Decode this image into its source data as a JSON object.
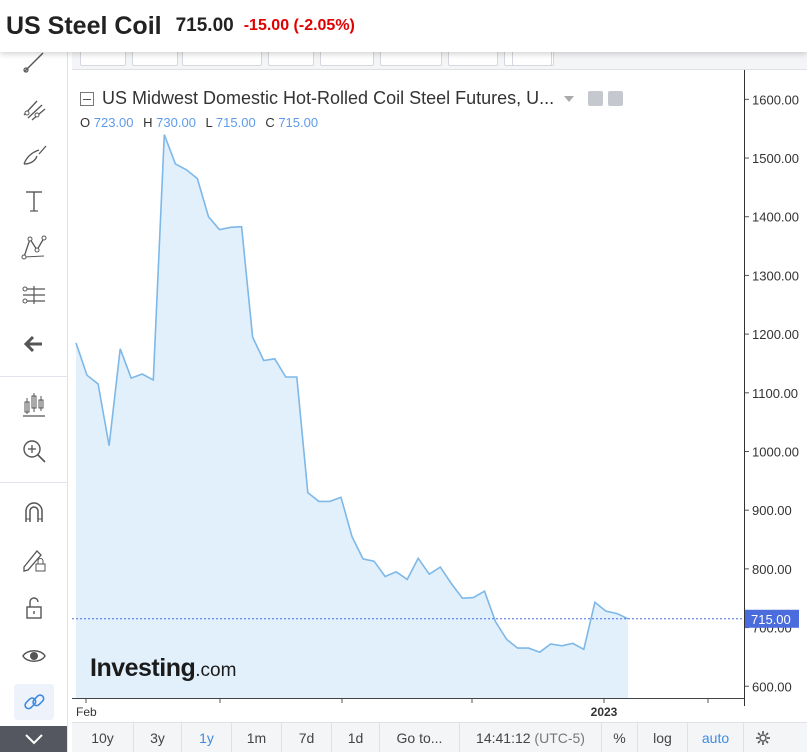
{
  "header": {
    "title": "US Steel Coil",
    "price": "715.00",
    "change": "-15.00 (-2.05%)"
  },
  "legend": {
    "title": "US Midwest Domestic Hot-Rolled Coil Steel Futures, U...",
    "open_label": "O",
    "open_value": "723.00",
    "high_label": "H",
    "high_value": "730.00",
    "low_label": "L",
    "low_value": "715.00",
    "close_label": "C",
    "close_value": "715.00"
  },
  "watermark": {
    "brand": "Investing",
    "suffix": ".com"
  },
  "bottom_bar": {
    "ranges": [
      "10y",
      "3y",
      "1y",
      "1m",
      "7d",
      "1d"
    ],
    "active_range": "1y",
    "goto": "Go to...",
    "time": "14:41:12",
    "timezone": "(UTC-5)",
    "percent": "%",
    "log": "log",
    "auto": "auto"
  },
  "colors": {
    "line": "#7db8e8",
    "area": "#e2f0fb",
    "price_label_bg": "#4a6cdd",
    "change_negative": "#e00000"
  },
  "left_toolbar_icons": [
    "trend-line-icon",
    "pitchfork-icon",
    "brush-icon",
    "text-icon",
    "pattern-icon",
    "measure-icon",
    "back-arrow-icon",
    "indicators-icon",
    "zoom-in-icon",
    "magnet-icon",
    "lock-drawing-icon",
    "unlock-icon",
    "eye-icon",
    "link-icon",
    "expand-chevron-icon"
  ],
  "chart_data": {
    "type": "area",
    "title": "US Midwest Domestic Hot-Rolled Coil Steel Futures, U...",
    "x_tick_labels": [
      "Feb",
      "2023"
    ],
    "y_ticks": [
      "600.00",
      "700.00",
      "800.00",
      "900.00",
      "1000.00",
      "1100.00",
      "1200.00",
      "1300.00",
      "1400.00",
      "1500.00",
      "1600.00"
    ],
    "ylim": [
      580,
      1650
    ],
    "last_price_label": "715.00",
    "last_price": 715,
    "grid": false,
    "series": [
      {
        "values": [
          1185,
          1130,
          1115,
          1010,
          1175,
          1125,
          1132,
          1122,
          1540,
          1490,
          1480,
          1465,
          1400,
          1378,
          1382,
          1383,
          1195,
          1155,
          1158,
          1127,
          1127,
          930,
          915,
          915,
          922,
          855,
          817,
          813,
          787,
          795,
          782,
          818,
          791,
          803,
          775,
          750,
          751,
          762,
          710,
          680,
          665,
          665,
          658,
          672,
          669,
          673,
          663,
          743,
          728,
          724,
          715
        ]
      }
    ]
  }
}
